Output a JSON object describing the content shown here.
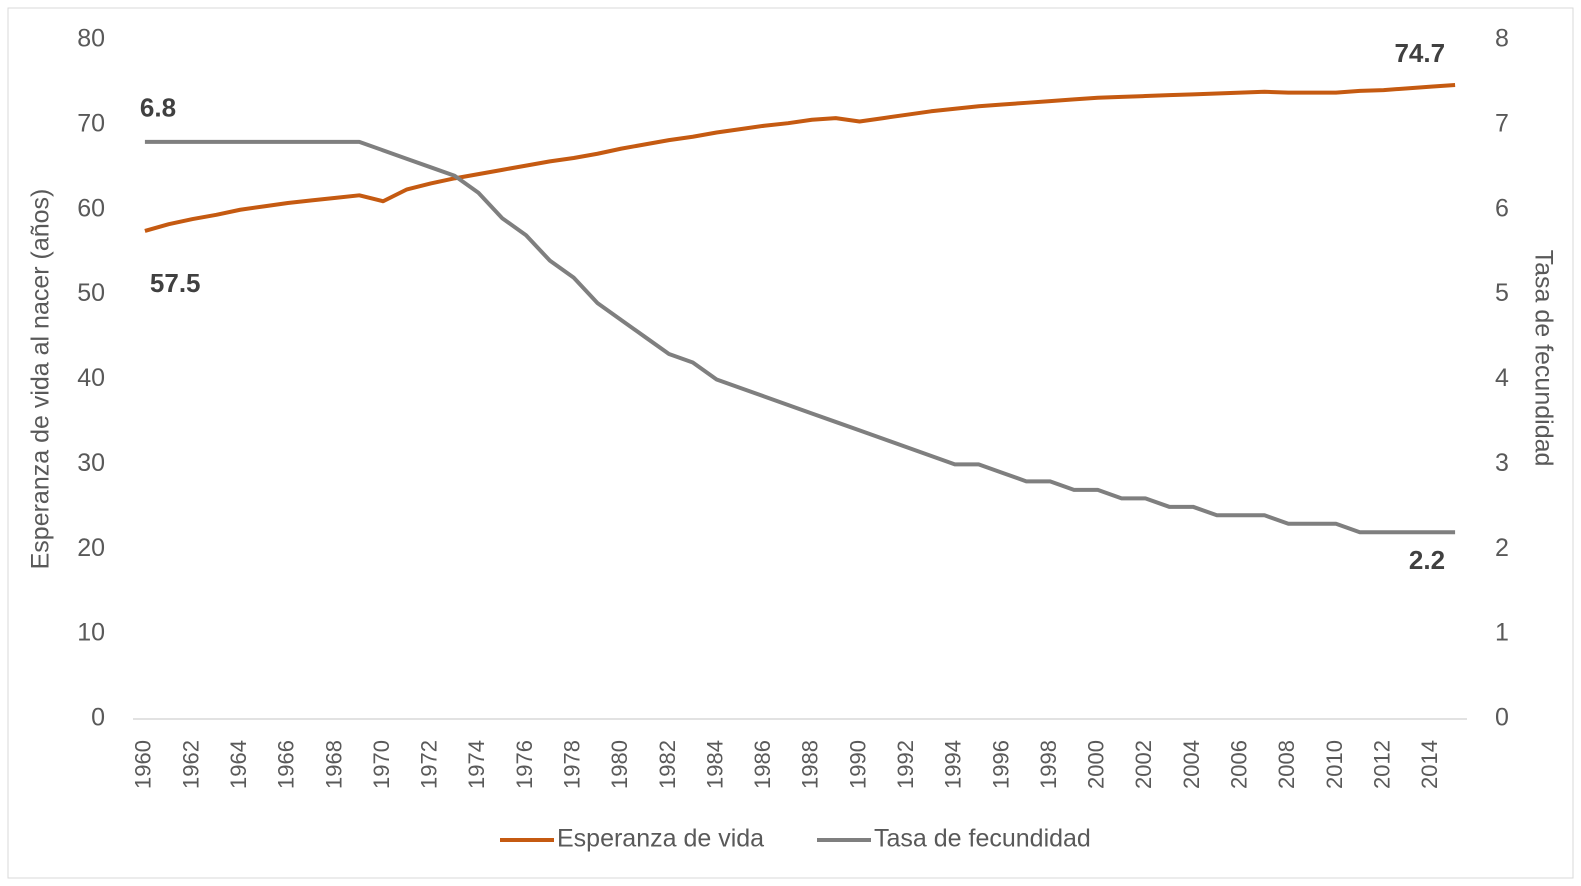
{
  "chart_data": {
    "type": "line",
    "y_label": "Esperanza de vida al nacer (años)",
    "y2_label": "Tasa de fecundidad",
    "categories": [
      1960,
      null,
      1962,
      null,
      1964,
      null,
      1966,
      null,
      1968,
      null,
      1970,
      null,
      1972,
      null,
      1974,
      null,
      1976,
      null,
      1978,
      null,
      1980,
      null,
      1982,
      null,
      1984,
      null,
      1986,
      null,
      1988,
      null,
      1990,
      null,
      1992,
      null,
      1994,
      null,
      1996,
      null,
      1998,
      null,
      2000,
      null,
      2002,
      null,
      2004,
      null,
      2006,
      null,
      2008,
      null,
      2010,
      null,
      2012,
      null,
      2014,
      null
    ],
    "series": [
      {
        "name": "Esperanza de vida",
        "color": "#c55a11",
        "axis": "y",
        "values": [
          57.5,
          58.3,
          58.9,
          59.4,
          60.0,
          60.4,
          60.8,
          61.1,
          61.4,
          61.7,
          61.0,
          62.4,
          63.1,
          63.7,
          64.2,
          64.7,
          65.2,
          65.7,
          66.1,
          66.6,
          67.2,
          67.7,
          68.2,
          68.6,
          69.1,
          69.5,
          69.9,
          70.2,
          70.6,
          70.8,
          70.4,
          70.8,
          71.2,
          71.6,
          71.9,
          72.2,
          72.4,
          72.6,
          72.8,
          73.0,
          73.2,
          73.3,
          73.4,
          73.5,
          73.6,
          73.7,
          73.8,
          73.9,
          73.8,
          73.8,
          73.8,
          74.0,
          74.1,
          74.3,
          74.5,
          74.7
        ]
      },
      {
        "name": "Tasa de fecundidad",
        "color": "#7f7f7f",
        "axis": "y2",
        "values": [
          6.8,
          6.8,
          6.8,
          6.8,
          6.8,
          6.8,
          6.8,
          6.8,
          6.8,
          6.8,
          6.7,
          6.6,
          6.5,
          6.4,
          6.2,
          5.9,
          5.7,
          5.4,
          5.2,
          4.9,
          4.7,
          4.5,
          4.3,
          4.2,
          4.0,
          3.9,
          3.8,
          3.7,
          3.6,
          3.5,
          3.4,
          3.3,
          3.2,
          3.1,
          3.0,
          3.0,
          2.9,
          2.8,
          2.8,
          2.7,
          2.7,
          2.6,
          2.6,
          2.5,
          2.5,
          2.4,
          2.4,
          2.4,
          2.3,
          2.3,
          2.3,
          2.2,
          2.2,
          2.2,
          2.2,
          2.2
        ]
      }
    ],
    "ylim": [
      0,
      80
    ],
    "yticks": [
      0,
      10,
      20,
      30,
      40,
      50,
      60,
      70,
      80
    ],
    "y2lim": [
      0,
      8
    ],
    "y2ticks": [
      0,
      1,
      2,
      3,
      4,
      5,
      6,
      7,
      8
    ],
    "grid": false,
    "legend": "bottom"
  }
}
